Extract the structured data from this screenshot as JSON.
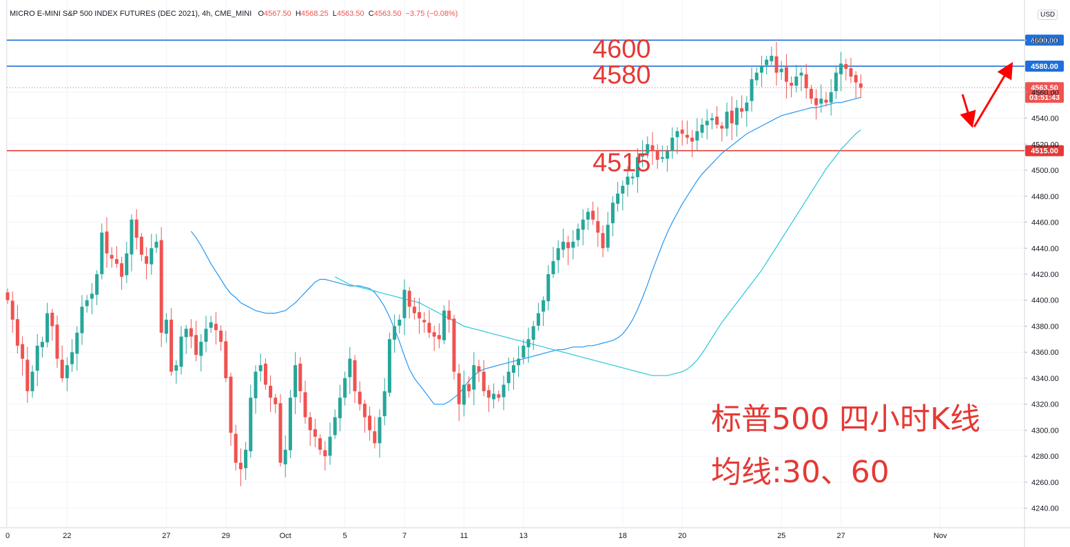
{
  "header": {
    "symbol": "MICRO E-MINI S&P 500 INDEX FUTURES (DEC 2021), 4h, CME_MINI",
    "o_label": "O",
    "o": "4567.50",
    "h_label": "H",
    "h": "4568.25",
    "l_label": "L",
    "l": "4563.50",
    "c_label": "C",
    "c": "4563.50",
    "change": "−3.75 (−0.08%)"
  },
  "currency": "USD",
  "price_badge": {
    "price": "4563.50",
    "countdown": "03:51:43"
  },
  "colors": {
    "up": "#26a69a",
    "down": "#ef5350",
    "blue_line": "#1e6fd9",
    "red_line": "#e53935",
    "ma30": "#2196f3",
    "ma60": "#26c6da"
  },
  "chart_data": {
    "type": "candlestick",
    "ylim": [
      4225,
      4615
    ],
    "y_ticks": [
      4240,
      4260,
      4280,
      4300,
      4320,
      4340,
      4360,
      4380,
      4400,
      4420,
      4440,
      4460,
      4480,
      4500,
      4520,
      4540,
      4560,
      4600
    ],
    "x_ticks": [
      {
        "label": "0",
        "i": 0
      },
      {
        "label": "22",
        "i": 12
      },
      {
        "label": "27",
        "i": 32
      },
      {
        "label": "29",
        "i": 44
      },
      {
        "label": "Oct",
        "i": 56
      },
      {
        "label": "5",
        "i": 68
      },
      {
        "label": "7",
        "i": 80
      },
      {
        "label": "11",
        "i": 92
      },
      {
        "label": "13",
        "i": 104
      },
      {
        "label": "18",
        "i": 124
      },
      {
        "label": "20",
        "i": 136
      },
      {
        "label": "25",
        "i": 156
      },
      {
        "label": "27",
        "i": 168
      },
      {
        "label": "Nov",
        "i": 188
      }
    ],
    "horizontal_levels": [
      {
        "price": 4600,
        "color": "blue",
        "badge": "4600.00"
      },
      {
        "price": 4580,
        "color": "blue",
        "badge": "4580.00"
      },
      {
        "price": 4515,
        "color": "red",
        "badge": "4515.00"
      }
    ],
    "level_annotations": [
      {
        "text": "4600",
        "price": 4600
      },
      {
        "text": "4580",
        "price": 4580
      },
      {
        "text": "4515",
        "price": 4515
      }
    ],
    "notes": [
      "标普500 四小时K线",
      "均线:30、60"
    ],
    "close": [
      4400,
      4385,
      4365,
      4355,
      4330,
      4345,
      4365,
      4368,
      4390,
      4380,
      4355,
      4340,
      4350,
      4360,
      4375,
      4395,
      4400,
      4405,
      4420,
      4452,
      4436,
      4432,
      4428,
      4418,
      4436,
      4462,
      4448,
      4435,
      4428,
      4440,
      4445,
      4375,
      4385,
      4345,
      4350,
      4372,
      4378,
      4372,
      4358,
      4368,
      4378,
      4383,
      4377,
      4368,
      4340,
      4298,
      4275,
      4270,
      4285,
      4325,
      4345,
      4350,
      4335,
      4325,
      4320,
      4275,
      4285,
      4325,
      4350,
      4330,
      4310,
      4300,
      4295,
      4285,
      4280,
      4295,
      4310,
      4325,
      4340,
      4355,
      4330,
      4320,
      4310,
      4300,
      4290,
      4310,
      4330,
      4370,
      4380,
      4385,
      4408,
      4395,
      4390,
      4386,
      4383,
      4375,
      4372,
      4370,
      4392,
      4385,
      4345,
      4320,
      4335,
      4330,
      4350,
      4345,
      4330,
      4325,
      4328,
      4325,
      4335,
      4345,
      4350,
      4355,
      4365,
      4370,
      4380,
      4390,
      4400,
      4420,
      4430,
      4440,
      4445,
      4440,
      4445,
      4455,
      4462,
      4468,
      4462,
      4452,
      4440,
      4458,
      4475,
      4482,
      4488,
      4495,
      4495,
      4510,
      4512,
      4520,
      4515,
      4508,
      4510,
      4515,
      4525,
      4530,
      4528,
      4525,
      4522,
      4530,
      4535,
      4538,
      4540,
      4535,
      4532,
      4545,
      4536,
      4548,
      4545,
      4552,
      4570,
      4575,
      4580,
      4585,
      4588,
      4575,
      4578,
      4568,
      4565,
      4572,
      4575,
      4563,
      4555,
      4550,
      4555,
      4552,
      4560,
      4575,
      4582,
      4578,
      4572,
      4567.5,
      4563.5
    ],
    "series": [
      {
        "name": "30",
        "values": [
          4453,
          4448,
          4442,
          4435,
          4428,
          4422,
          4416,
          4410,
          4405,
          4402,
          4398,
          4396,
          4394,
          4392,
          4391,
          4390,
          4390,
          4390,
          4391,
          4392,
          4395,
          4398,
          4402,
          4406,
          4410,
          4414,
          4416,
          4416,
          4415,
          4414,
          4413,
          4412,
          4411,
          4411,
          4411,
          4410,
          4409,
          4406,
          4401,
          4395,
          4387,
          4378,
          4368,
          4357,
          4347,
          4340,
          4335,
          4330,
          4325,
          4320,
          4320,
          4320,
          4322,
          4325,
          4328,
          4333,
          4338,
          4342,
          4345,
          4347,
          4348,
          4349,
          4350,
          4351,
          4352,
          4353,
          4354,
          4355,
          4356,
          4357,
          4358,
          4359,
          4360,
          4361,
          4362,
          4362,
          4363,
          4364,
          4364,
          4364,
          4365,
          4365,
          4366,
          4367,
          4368,
          4369,
          4371,
          4374,
          4379,
          4385,
          4393,
          4402,
          4412,
          4423,
          4433,
          4443,
          4452,
          4460,
          4467,
          4474,
          4480,
          4486,
          4492,
          4497,
          4501,
          4505,
          4509,
          4513,
          4516,
          4519,
          4522,
          4525,
          4528,
          4530,
          4532,
          4534,
          4536,
          4538,
          4540,
          4542,
          4543,
          4544,
          4545,
          4546,
          4547,
          4548,
          4548,
          4549,
          4550,
          4551,
          4552,
          4552,
          4553,
          4554,
          4555,
          4556
        ]
      },
      {
        "name": "60",
        "values": [
          4418,
          4416,
          4414,
          4412,
          4411,
          4410,
          4409,
          4408,
          4407,
          4406,
          4405,
          4404,
          4403,
          4402,
          4401,
          4400,
          4399,
          4398,
          4396,
          4394,
          4392,
          4390,
          4388,
          4386,
          4384,
          4382,
          4380,
          4379,
          4378,
          4377,
          4376,
          4375,
          4374,
          4373,
          4372,
          4371,
          4370,
          4369,
          4368,
          4367,
          4366,
          4365,
          4364,
          4363,
          4362,
          4361,
          4360,
          4359,
          4358,
          4357,
          4356,
          4355,
          4354,
          4353,
          4352,
          4351,
          4350,
          4349,
          4348,
          4347,
          4346,
          4345,
          4344,
          4343,
          4342,
          4342,
          4342,
          4342,
          4343,
          4344,
          4345,
          4347,
          4350,
          4354,
          4359,
          4365,
          4371,
          4377,
          4383,
          4388,
          4393,
          4398,
          4403,
          4408,
          4413,
          4418,
          4423,
          4429,
          4435,
          4441,
          4447,
          4453,
          4459,
          4465,
          4471,
          4477,
          4483,
          4489,
          4495,
          4501,
          4506,
          4511,
          4516,
          4520,
          4524,
          4528,
          4531
        ]
      }
    ]
  }
}
